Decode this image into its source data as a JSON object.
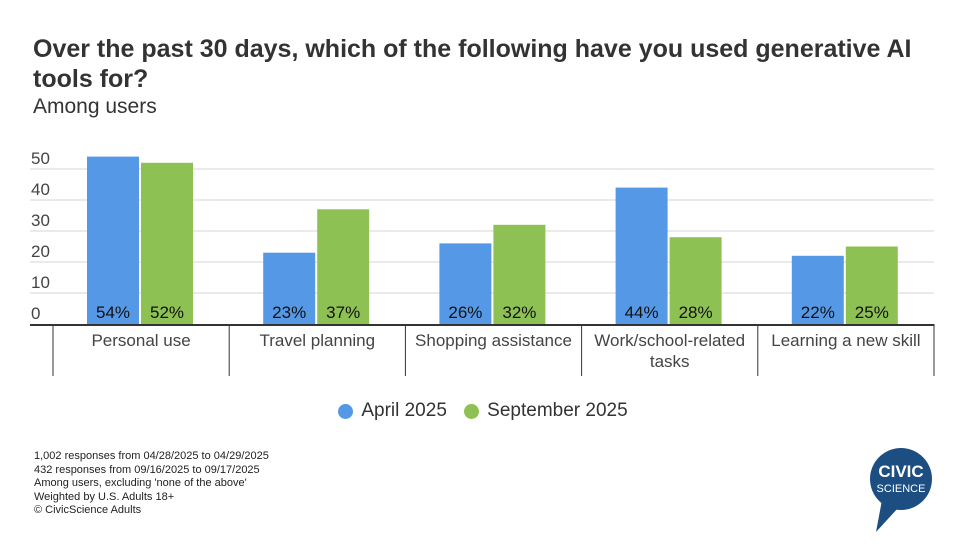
{
  "chart_data": {
    "type": "bar",
    "title": "Over the past 30 days, which of the following have you used generative AI tools for?",
    "subtitle": "Among users",
    "categories": [
      "Personal use",
      "Travel planning",
      "Shopping assistance",
      "Work/school-related tasks",
      "Learning a new skill"
    ],
    "category_lines": [
      [
        "Personal use"
      ],
      [
        "Travel planning"
      ],
      [
        "Shopping assistance"
      ],
      [
        "Work/school-related",
        "tasks"
      ],
      [
        "Learning a new skill"
      ]
    ],
    "series": [
      {
        "name": "April 2025",
        "values": [
          54,
          23,
          26,
          44,
          22
        ],
        "labels": [
          "54%",
          "23%",
          "26%",
          "44%",
          "22%"
        ],
        "color": "#5599e6"
      },
      {
        "name": "September 2025",
        "values": [
          52,
          37,
          32,
          28,
          25
        ],
        "labels": [
          "52%",
          "37%",
          "32%",
          "28%",
          "25%"
        ],
        "color": "#8dc153"
      }
    ],
    "yticks": [
      "0",
      "10",
      "20",
      "30",
      "40",
      "50"
    ],
    "ylim": [
      0,
      50
    ],
    "grid": true,
    "legend_position": "bottom"
  },
  "footnotes": [
    "1,002 responses from 04/28/2025 to 04/29/2025",
    "432 responses from 09/16/2025 to 09/17/2025",
    "Among users, excluding 'none of the above'",
    "Weighted by U.S. Adults 18+",
    "© CivicScience Adults"
  ],
  "logo": {
    "line1": "CIVIC",
    "line2": "SCIENCE",
    "color": "#1d4e82"
  }
}
